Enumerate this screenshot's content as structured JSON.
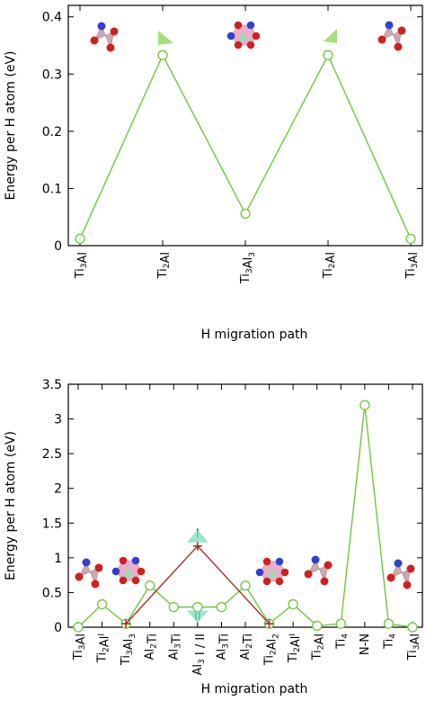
{
  "chart_data": [
    {
      "type": "line",
      "ylabel": "Energy per H atom (eV)",
      "xlabel": "H migration path",
      "ylim": [
        0,
        0.42
      ],
      "yticks": [
        "0",
        "0.1",
        "0.2",
        "0.3",
        "0.4"
      ],
      "categories": [
        "Ti3Al",
        "Ti2Al",
        "Ti3Al3",
        "Ti2Al",
        "Ti3Al"
      ],
      "category_labels": [
        {
          "base": "Ti",
          "s1": "3",
          "mid": "Al",
          "s2": ""
        },
        {
          "base": "Ti",
          "s1": "2",
          "mid": "Al",
          "s2": ""
        },
        {
          "base": "Ti",
          "s1": "3",
          "mid": "Al",
          "s2": "3"
        },
        {
          "base": "Ti",
          "s1": "2",
          "mid": "Al",
          "s2": ""
        },
        {
          "base": "Ti",
          "s1": "3",
          "mid": "Al",
          "s2": ""
        }
      ],
      "series": [
        {
          "values": [
            0.012,
            0.333,
            0.056,
            0.333,
            0.012
          ],
          "color": "#6dc83e",
          "marker": "open-circle"
        }
      ]
    },
    {
      "type": "line",
      "ylabel": "Energy per H atom (eV)",
      "xlabel": "H migration path",
      "ylim": [
        0,
        3.5
      ],
      "yticks": [
        "0",
        "0.5",
        "1",
        "1.5",
        "2",
        "2.5",
        "3",
        "3.5"
      ],
      "categories": [
        "Ti3Al",
        "Ti2Al^I",
        "Ti3Al3",
        "Al2Ti",
        "Al3Ti",
        "Al3 I / II",
        "Al3Ti",
        "Al2Ti",
        "Ti2Al2",
        "Ti2Al^I",
        "Ti2Al",
        "Ti4",
        "N-N",
        "Ti4",
        "Ti3Al"
      ],
      "category_labels": [
        {
          "base": "Ti",
          "s1": "3",
          "mid": "Al",
          "s2": ""
        },
        {
          "base": "Ti",
          "s1": "2",
          "mid": "Al",
          "sup": "I"
        },
        {
          "base": "Ti",
          "s1": "3",
          "mid": "Al",
          "s2": "3"
        },
        {
          "base": "Al",
          "s1": "2",
          "mid": "Ti",
          "s2": ""
        },
        {
          "base": "Al",
          "s1": "3",
          "mid": "Ti",
          "s2": ""
        },
        {
          "base": "Al",
          "s1": "3",
          "mid": " I / II",
          "s2": ""
        },
        {
          "base": "Al",
          "s1": "3",
          "mid": "Ti",
          "s2": ""
        },
        {
          "base": "Al",
          "s1": "2",
          "mid": "Ti",
          "s2": ""
        },
        {
          "base": "Ti",
          "s1": "2",
          "mid": "Al",
          "s2": "2"
        },
        {
          "base": "Ti",
          "s1": "2",
          "mid": "Al",
          "sup": "I"
        },
        {
          "base": "Ti",
          "s1": "2",
          "mid": "Al",
          "s2": ""
        },
        {
          "base": "Ti",
          "s1": "4",
          "mid": "",
          "s2": ""
        },
        {
          "base": "N-N",
          "s1": "",
          "mid": "",
          "s2": ""
        },
        {
          "base": "Ti",
          "s1": "4",
          "mid": "",
          "s2": ""
        },
        {
          "base": "Ti",
          "s1": "3",
          "mid": "Al",
          "s2": ""
        }
      ],
      "series": [
        {
          "x": [
            0,
            1,
            2,
            3,
            4,
            5,
            6,
            7,
            8,
            9,
            10,
            11,
            12,
            13,
            14
          ],
          "values": [
            0.0,
            0.33,
            0.05,
            0.6,
            0.29,
            0.29,
            0.29,
            0.6,
            0.05,
            0.33,
            0.02,
            0.05,
            3.2,
            0.05,
            0.0
          ],
          "color": "#6dc83e",
          "marker": "open-circle"
        },
        {
          "x": [
            2,
            5,
            8
          ],
          "values": [
            0.05,
            1.17,
            0.05
          ],
          "color": "#a03228",
          "marker": "plus"
        }
      ],
      "annotations": [
        "I",
        "II"
      ]
    }
  ]
}
